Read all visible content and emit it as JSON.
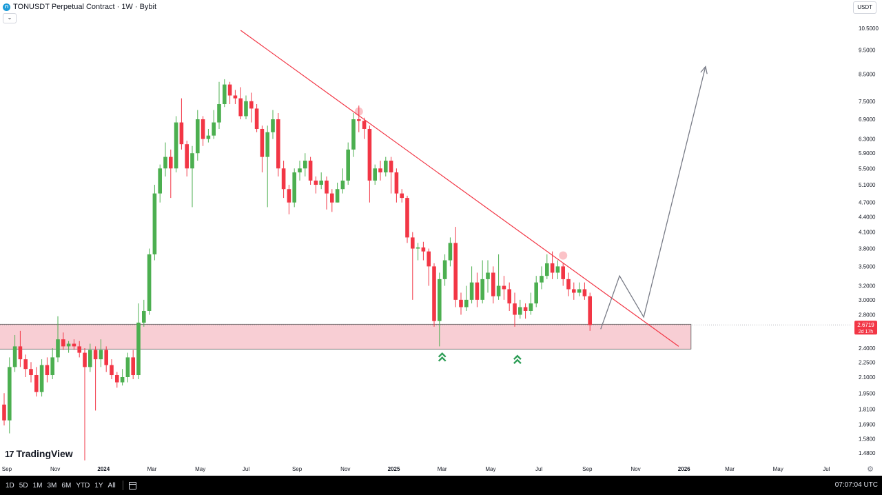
{
  "header": {
    "title": "TONUSDT Perpetual Contract · 1W · Bybit",
    "currency": "USDT",
    "collapse_icon": "chevron-down-icon"
  },
  "branding": {
    "name": "TradingView"
  },
  "price_label": {
    "price": "2.6719",
    "countdown": "2d 17h"
  },
  "bottom_bar": {
    "ranges": [
      "1D",
      "5D",
      "1M",
      "3M",
      "6M",
      "YTD",
      "1Y",
      "All"
    ],
    "clock": "07:07:04 UTC"
  },
  "colors": {
    "up": "#4caf50",
    "down": "#f23645",
    "trendline": "#f23645",
    "zone_fill": "#f7c5cc",
    "projection": "#787b86"
  },
  "chart_data": {
    "type": "candlestick",
    "scale": "log",
    "interval": "1W",
    "y_ticks": [
      10.5,
      9.5,
      8.5,
      7.5,
      6.9,
      6.3,
      5.9,
      5.5,
      5.1,
      4.7,
      4.4,
      4.1,
      3.8,
      3.5,
      3.2,
      3.0,
      2.8,
      2.4,
      2.25,
      2.1,
      1.95,
      1.81,
      1.69,
      1.58,
      1.48
    ],
    "y_tick_labels": [
      "10.5000",
      "9.5000",
      "8.5000",
      "7.5000",
      "6.9000",
      "6.3000",
      "5.9000",
      "5.5000",
      "5.1000",
      "4.7000",
      "4.4000",
      "4.1000",
      "3.8000",
      "3.5000",
      "3.2000",
      "3.0000",
      "2.8000",
      "2.4000",
      "2.2500",
      "2.1000",
      "1.9500",
      "1.8100",
      "1.6900",
      "1.5800",
      "1.4800"
    ],
    "x_ticks": [
      {
        "label": "Sep",
        "idx": 0.5
      },
      {
        "label": "Nov",
        "idx": 9.5
      },
      {
        "label": "2024",
        "idx": 18.5
      },
      {
        "label": "Mar",
        "idx": 27.5
      },
      {
        "label": "May",
        "idx": 36.5
      },
      {
        "label": "Jul",
        "idx": 45
      },
      {
        "label": "Sep",
        "idx": 54.5
      },
      {
        "label": "Nov",
        "idx": 63.5
      },
      {
        "label": "2025",
        "idx": 72.5
      },
      {
        "label": "Mar",
        "idx": 81.5
      },
      {
        "label": "May",
        "idx": 90.5
      },
      {
        "label": "Jul",
        "idx": 99.5
      },
      {
        "label": "Sep",
        "idx": 108.5
      },
      {
        "label": "Nov",
        "idx": 117.5
      },
      {
        "label": "2026",
        "idx": 126.5
      },
      {
        "label": "Mar",
        "idx": 135
      },
      {
        "label": "May",
        "idx": 144
      },
      {
        "label": "Jul",
        "idx": 153
      }
    ],
    "candles": [
      [
        1.85,
        1.72,
        1.95,
        1.68
      ],
      [
        1.72,
        2.2,
        2.3,
        1.62
      ],
      [
        2.2,
        2.42,
        2.55,
        2.15
      ],
      [
        2.42,
        2.28,
        2.6,
        2.2
      ],
      [
        2.28,
        2.18,
        2.33,
        2.1
      ],
      [
        2.18,
        2.12,
        2.25,
        2.05
      ],
      [
        2.12,
        1.96,
        2.2,
        1.92
      ],
      [
        1.96,
        2.22,
        2.28,
        1.92
      ],
      [
        2.22,
        2.12,
        2.3,
        2.05
      ],
      [
        2.12,
        2.3,
        2.4,
        2.08
      ],
      [
        2.3,
        2.5,
        2.78,
        2.25
      ],
      [
        2.5,
        2.42,
        2.58,
        2.38
      ],
      [
        2.42,
        2.45,
        2.48,
        2.35
      ],
      [
        2.45,
        2.42,
        2.5,
        2.38
      ],
      [
        2.42,
        2.35,
        2.48,
        2.3
      ],
      [
        2.35,
        2.2,
        2.4,
        1.43
      ],
      [
        2.2,
        2.38,
        2.45,
        2.15
      ],
      [
        2.38,
        2.28,
        2.42,
        1.8
      ],
      [
        2.28,
        2.38,
        2.5,
        2.2
      ],
      [
        2.38,
        2.22,
        2.42,
        2.15
      ],
      [
        2.22,
        2.12,
        2.28,
        2.08
      ],
      [
        2.12,
        2.05,
        2.15,
        2.0
      ],
      [
        2.05,
        2.1,
        2.18,
        2.02
      ],
      [
        2.1,
        2.3,
        2.35,
        2.05
      ],
      [
        2.3,
        2.12,
        2.38,
        2.08
      ],
      [
        2.12,
        2.7,
        2.95,
        2.08
      ],
      [
        2.7,
        2.85,
        3.0,
        2.65
      ],
      [
        2.85,
        3.7,
        3.8,
        2.8
      ],
      [
        3.7,
        4.9,
        5.1,
        3.6
      ],
      [
        4.9,
        5.5,
        5.6,
        4.7
      ],
      [
        5.5,
        5.8,
        6.2,
        5.3
      ],
      [
        5.8,
        5.5,
        6.0,
        4.8
      ],
      [
        5.5,
        6.8,
        7.0,
        5.4
      ],
      [
        6.8,
        6.15,
        7.6,
        6.0
      ],
      [
        6.15,
        5.5,
        6.25,
        5.3
      ],
      [
        5.5,
        5.9,
        6.1,
        4.6
      ],
      [
        5.9,
        6.9,
        7.2,
        5.7
      ],
      [
        6.9,
        6.3,
        7.0,
        6.1
      ],
      [
        6.3,
        6.4,
        6.6,
        6.2
      ],
      [
        6.4,
        6.8,
        7.2,
        6.3
      ],
      [
        6.8,
        7.4,
        8.2,
        6.6
      ],
      [
        7.4,
        8.1,
        8.3,
        7.3
      ],
      [
        8.1,
        7.7,
        8.2,
        7.4
      ],
      [
        7.7,
        7.6,
        7.9,
        7.4
      ],
      [
        7.6,
        7.0,
        8.0,
        6.9
      ],
      [
        7.0,
        7.5,
        7.7,
        6.9
      ],
      [
        7.5,
        7.25,
        7.8,
        6.8
      ],
      [
        7.25,
        6.6,
        7.4,
        6.5
      ],
      [
        6.6,
        5.8,
        6.7,
        5.4
      ],
      [
        5.8,
        6.5,
        6.7,
        4.6
      ],
      [
        6.5,
        6.9,
        7.2,
        6.3
      ],
      [
        6.9,
        5.5,
        7.1,
        5.3
      ],
      [
        5.5,
        5.0,
        5.7,
        4.8
      ],
      [
        5.0,
        4.7,
        5.1,
        4.45
      ],
      [
        4.7,
        5.4,
        5.5,
        4.6
      ],
      [
        5.4,
        5.5,
        5.7,
        5.2
      ],
      [
        5.5,
        5.7,
        5.9,
        5.3
      ],
      [
        5.7,
        5.2,
        5.8,
        5.1
      ],
      [
        5.2,
        5.1,
        5.3,
        4.9
      ],
      [
        5.1,
        5.2,
        5.4,
        5.0
      ],
      [
        5.2,
        4.9,
        5.3,
        4.55
      ],
      [
        4.9,
        4.7,
        5.0,
        4.5
      ],
      [
        4.7,
        5.0,
        5.15,
        4.7
      ],
      [
        5.0,
        5.2,
        5.5,
        4.9
      ],
      [
        5.2,
        6.0,
        6.2,
        5.1
      ],
      [
        6.0,
        6.9,
        7.1,
        5.8
      ],
      [
        6.9,
        6.85,
        7.35,
        6.5
      ],
      [
        6.85,
        6.6,
        6.95,
        6.3
      ],
      [
        6.6,
        5.2,
        6.7,
        4.7
      ],
      [
        5.2,
        5.5,
        5.6,
        5.1
      ],
      [
        5.5,
        5.4,
        5.7,
        5.2
      ],
      [
        5.4,
        5.7,
        5.8,
        5.3
      ],
      [
        5.7,
        5.4,
        5.8,
        4.9
      ],
      [
        5.4,
        4.9,
        5.5,
        4.7
      ],
      [
        4.9,
        4.8,
        5.0,
        4.7
      ],
      [
        4.8,
        4.0,
        4.85,
        3.9
      ],
      [
        4.0,
        3.8,
        4.1,
        3.0
      ],
      [
        3.8,
        3.82,
        3.9,
        3.6
      ],
      [
        3.82,
        3.75,
        3.92,
        3.6
      ],
      [
        3.75,
        3.5,
        3.8,
        3.2
      ],
      [
        3.5,
        2.72,
        3.55,
        2.65
      ],
      [
        2.72,
        3.3,
        3.4,
        2.42
      ],
      [
        3.3,
        3.6,
        3.7,
        3.2
      ],
      [
        3.6,
        3.9,
        4.0,
        3.5
      ],
      [
        3.9,
        3.0,
        4.2,
        2.9
      ],
      [
        3.0,
        2.9,
        3.1,
        2.8
      ],
      [
        2.9,
        3.0,
        3.2,
        2.85
      ],
      [
        3.0,
        3.25,
        3.5,
        2.95
      ],
      [
        3.25,
        3.0,
        3.4,
        2.9
      ],
      [
        3.0,
        3.3,
        3.6,
        2.95
      ],
      [
        3.3,
        3.4,
        3.6,
        3.1
      ],
      [
        3.4,
        3.05,
        3.5,
        2.95
      ],
      [
        3.05,
        3.2,
        3.7,
        3.0
      ],
      [
        3.2,
        3.15,
        3.35,
        3.0
      ],
      [
        3.15,
        2.95,
        3.25,
        2.85
      ],
      [
        2.95,
        2.8,
        3.1,
        2.65
      ],
      [
        2.8,
        2.9,
        3.0,
        2.75
      ],
      [
        2.9,
        2.85,
        2.95,
        2.75
      ],
      [
        2.85,
        2.95,
        3.1,
        2.8
      ],
      [
        2.95,
        3.25,
        3.35,
        2.9
      ],
      [
        3.25,
        3.35,
        3.5,
        3.15
      ],
      [
        3.35,
        3.55,
        3.7,
        3.3
      ],
      [
        3.55,
        3.4,
        3.75,
        3.3
      ],
      [
        3.4,
        3.5,
        3.6,
        3.3
      ],
      [
        3.5,
        3.3,
        3.55,
        3.2
      ],
      [
        3.3,
        3.15,
        3.4,
        3.05
      ],
      [
        3.15,
        3.1,
        3.25,
        3.0
      ],
      [
        3.1,
        3.15,
        3.25,
        3.05
      ],
      [
        3.15,
        3.05,
        3.25,
        3.0
      ],
      [
        3.05,
        2.67,
        3.1,
        2.6
      ]
    ],
    "trendline": {
      "from": {
        "idx": 44,
        "price": 10.4
      },
      "to": {
        "idx": 125.5,
        "price": 2.42
      }
    },
    "trendline_touches": [
      {
        "idx": 66,
        "price": 7.15
      },
      {
        "idx": 104,
        "price": 3.68
      }
    ],
    "support_zone": {
      "from_idx": -1,
      "to_idx": 127.8,
      "low": 2.39,
      "high": 2.68
    },
    "projection_path": [
      {
        "idx": 111,
        "price": 2.62
      },
      {
        "idx": 114.5,
        "price": 3.35
      },
      {
        "idx": 119,
        "price": 2.77
      },
      {
        "idx": 130.5,
        "price": 8.8
      }
    ],
    "markers": [
      {
        "idx": 81.5,
        "price": 2.305,
        "type": "double-chevron-up"
      },
      {
        "idx": 95.5,
        "price": 2.28,
        "type": "double-chevron-up"
      }
    ],
    "last_price": 2.6719
  }
}
